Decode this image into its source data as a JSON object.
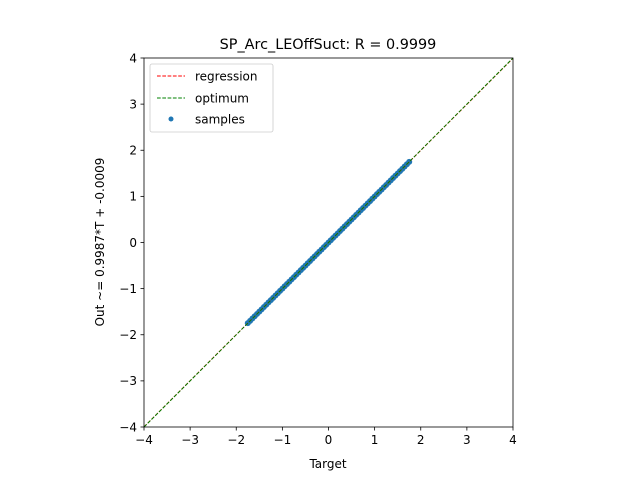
{
  "chart_data": {
    "type": "scatter",
    "title": "SP_Arc_LEOffSuct: R = 0.9999",
    "xlabel": "Target",
    "ylabel": "Out ~= 0.9987*T + -0.0009",
    "xlim": [
      -4,
      4
    ],
    "ylim": [
      -4,
      4
    ],
    "xticks": [
      "−4",
      "−3",
      "−2",
      "−1",
      "0",
      "1",
      "2",
      "3",
      "4"
    ],
    "yticks": [
      "−4",
      "−3",
      "−2",
      "−1",
      "0",
      "1",
      "2",
      "3",
      "4"
    ],
    "grid": false,
    "legend_position": "top-left",
    "series": [
      {
        "name": "regression",
        "kind": "line",
        "style": "dashed",
        "color": "#ff0000",
        "slope": 0.9987,
        "intercept": -0.0009,
        "x": [
          -4,
          4
        ],
        "y": [
          -3.9957,
          3.9939
        ]
      },
      {
        "name": "optimum",
        "kind": "line",
        "style": "dashed",
        "color": "#008000",
        "slope": 1,
        "intercept": 0,
        "x": [
          -4,
          4
        ],
        "y": [
          -4,
          4
        ]
      },
      {
        "name": "samples",
        "kind": "scatter",
        "color": "#1f77b4",
        "x_range": [
          -1.75,
          1.75
        ],
        "count": 71
      }
    ]
  }
}
